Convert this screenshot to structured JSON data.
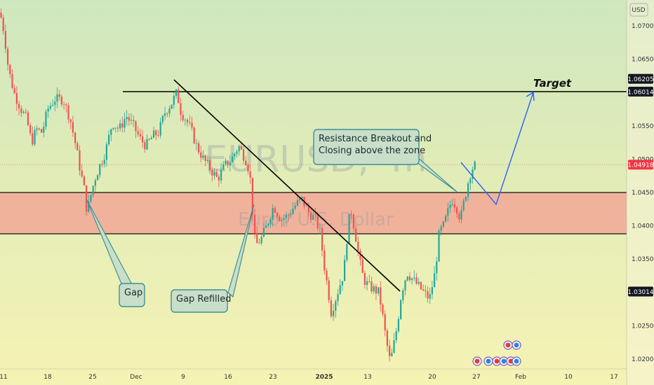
{
  "chart_data": {
    "type": "candlestick",
    "symbol_watermark": "EURUSD, 4h",
    "description_watermark": "Euro / U.S. Dollar",
    "currency_label": "USD",
    "y_ticks": [
      "1.07000",
      "1.06500",
      "1.05500",
      "1.05000",
      "1.04500",
      "1.04000",
      "1.03500",
      "1.02500",
      "1.02000"
    ],
    "x_ticks": [
      "11",
      "18",
      "25",
      "Dec",
      "9",
      "16",
      "23",
      "2025",
      "13",
      "20",
      "27",
      "Feb",
      "10",
      "17"
    ],
    "price_tags": [
      {
        "label": "1.06205",
        "value": 1.06205,
        "style": "dark"
      },
      {
        "label": "1.06014",
        "value": 1.06014,
        "style": "dark"
      },
      {
        "label": "1.04918",
        "value": 1.04918,
        "style": "red"
      },
      {
        "label": "1.03014",
        "value": 1.03014,
        "style": "dark"
      }
    ],
    "zone": {
      "top": 1.045,
      "bottom": 1.0388,
      "color": "#f2a796"
    },
    "target_level": 1.06014,
    "target_label": "Target",
    "current_price": 1.04918,
    "annotations": {
      "gap": "Gap",
      "gap_refilled": "Gap Refilled",
      "breakout": [
        "Resistance Breakout and",
        "Closing above the zone"
      ]
    },
    "colors": {
      "bull": "#26a69a",
      "bear": "#ef5350",
      "projection": "#2962ff",
      "trendline": "#000000"
    }
  }
}
